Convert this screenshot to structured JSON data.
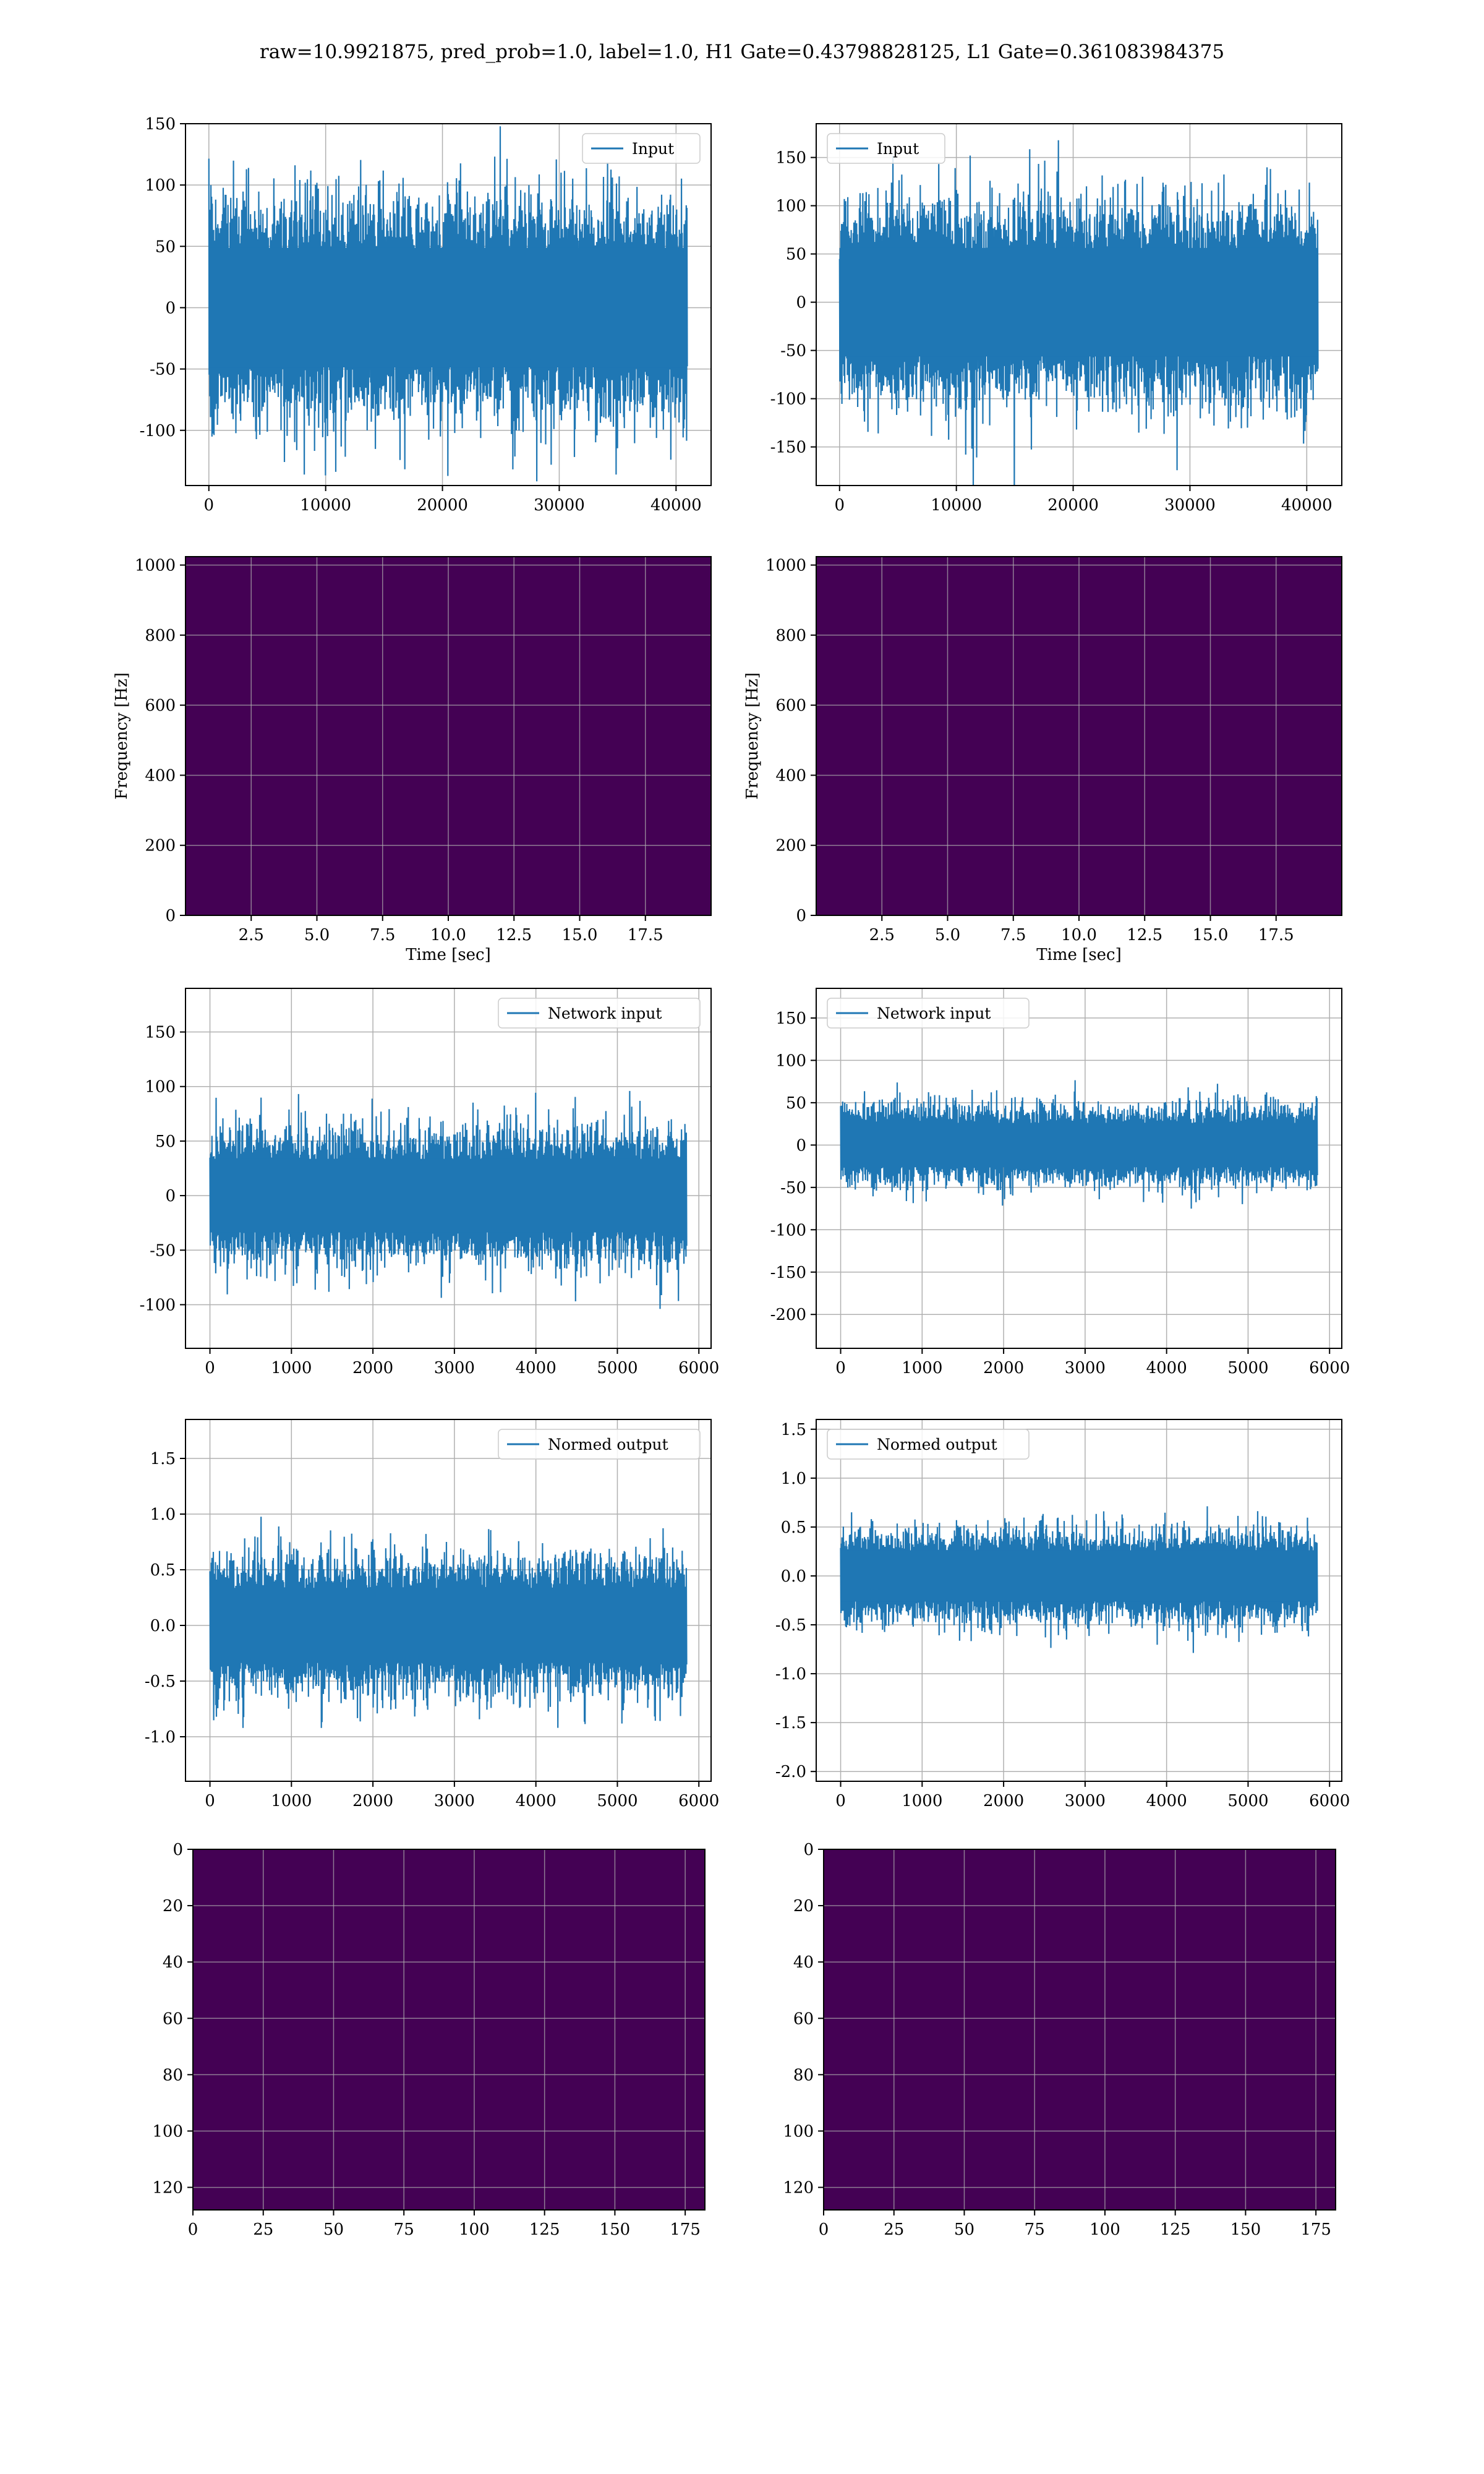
{
  "title": "raw=10.9921875, pred_prob=1.0, label=1.0, H1 Gate=0.43798828125, L1 Gate=0.361083984375",
  "colors": {
    "line": "#1f77b4",
    "grid": "#b0b0b0",
    "axes": "#000000",
    "heat_bg": "#440154",
    "heat_mid": "#31688e",
    "heat_hi": "#fde725"
  },
  "chart_data": [
    {
      "id": "h1-input",
      "type": "line",
      "legend": "Input",
      "legend_loc": "upper right",
      "x_ticks": [
        0,
        10000,
        20000,
        30000,
        40000
      ],
      "y_ticks": [
        -100,
        -50,
        0,
        50,
        100,
        150
      ],
      "xlim": [
        -2000,
        43000
      ],
      "ylim": [
        -145,
        150
      ],
      "n": 40960,
      "band": 65,
      "grid": true
    },
    {
      "id": "l1-input",
      "type": "line",
      "legend": "Input",
      "legend_loc": "upper left",
      "x_ticks": [
        0,
        10000,
        20000,
        30000,
        40000
      ],
      "y_ticks": [
        -150,
        -100,
        -50,
        0,
        50,
        100,
        150
      ],
      "xlim": [
        -2000,
        43000
      ],
      "ylim": [
        -190,
        185
      ],
      "n": 40960,
      "band": 75,
      "grid": true
    },
    {
      "id": "h1-spectrogram",
      "type": "heatmap",
      "xlabel": "Time [sec]",
      "ylabel": "Frequency [Hz]",
      "x_ticks": [
        2.5,
        5.0,
        7.5,
        10.0,
        12.5,
        15.0,
        17.5
      ],
      "y_ticks": [
        0,
        200,
        400,
        600,
        800,
        1000
      ],
      "xlim": [
        0,
        20
      ],
      "ylim": [
        0,
        1024
      ],
      "grid": true,
      "brightness": 0.55
    },
    {
      "id": "l1-spectrogram",
      "type": "heatmap",
      "xlabel": "Time [sec]",
      "ylabel": "Frequency [Hz]",
      "x_ticks": [
        2.5,
        5.0,
        7.5,
        10.0,
        12.5,
        15.0,
        17.5
      ],
      "y_ticks": [
        0,
        200,
        400,
        600,
        800,
        1000
      ],
      "xlim": [
        0,
        20
      ],
      "ylim": [
        0,
        1024
      ],
      "grid": true,
      "brightness": 0.22
    },
    {
      "id": "h1-network-input",
      "type": "line",
      "legend": "Network input",
      "legend_loc": "upper right",
      "x_ticks": [
        0,
        1000,
        2000,
        3000,
        4000,
        5000,
        6000
      ],
      "y_ticks": [
        -100,
        -50,
        0,
        50,
        100,
        150
      ],
      "xlim": [
        -300,
        6150
      ],
      "ylim": [
        -140,
        190
      ],
      "n": 5850,
      "band": 45,
      "grid": true
    },
    {
      "id": "l1-network-input",
      "type": "line",
      "legend": "Network input",
      "legend_loc": "upper left",
      "x_ticks": [
        0,
        1000,
        2000,
        3000,
        4000,
        5000,
        6000
      ],
      "y_ticks": [
        -200,
        -150,
        -100,
        -50,
        0,
        50,
        100,
        150
      ],
      "xlim": [
        -300,
        6150
      ],
      "ylim": [
        -240,
        185
      ],
      "n": 5850,
      "band": 35,
      "grid": true
    },
    {
      "id": "h1-normed-output",
      "type": "line",
      "legend": "Normed output",
      "legend_loc": "upper right",
      "x_ticks": [
        0,
        1000,
        2000,
        3000,
        4000,
        5000,
        6000
      ],
      "y_ticks": [
        -1.0,
        -0.5,
        0.0,
        0.5,
        1.0,
        1.5
      ],
      "xlim": [
        -300,
        6150
      ],
      "ylim": [
        -1.4,
        1.85
      ],
      "n": 5850,
      "band": 0.45,
      "grid": true
    },
    {
      "id": "l1-normed-output",
      "type": "line",
      "legend": "Normed output",
      "legend_loc": "upper left",
      "x_ticks": [
        0,
        1000,
        2000,
        3000,
        4000,
        5000,
        6000
      ],
      "y_ticks": [
        -2.0,
        -1.5,
        -1.0,
        -0.5,
        0.0,
        0.5,
        1.0,
        1.5
      ],
      "xlim": [
        -300,
        6150
      ],
      "ylim": [
        -2.1,
        1.6
      ],
      "n": 5850,
      "band": 0.35,
      "grid": true
    },
    {
      "id": "h1-feature-map",
      "type": "heatmap",
      "x_ticks": [
        0,
        25,
        50,
        75,
        100,
        125,
        150,
        175
      ],
      "y_ticks": [
        0,
        20,
        40,
        60,
        80,
        100,
        120
      ],
      "xlim": [
        0,
        182
      ],
      "ylim": [
        128,
        0
      ],
      "grid": true,
      "brightness": 0.3
    },
    {
      "id": "l1-feature-map",
      "type": "heatmap",
      "x_ticks": [
        0,
        25,
        50,
        75,
        100,
        125,
        150,
        175
      ],
      "y_ticks": [
        0,
        20,
        40,
        60,
        80,
        100,
        120
      ],
      "xlim": [
        0,
        182
      ],
      "ylim": [
        128,
        0
      ],
      "grid": true,
      "brightness": 0.3
    }
  ]
}
